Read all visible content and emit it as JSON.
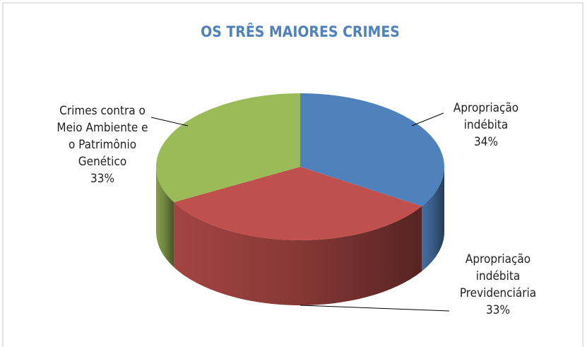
{
  "chart_data": {
    "type": "pie3d",
    "title": "OS TRÊS MAIORES CRIMES",
    "categories": [
      "Apropriação indébita",
      "Apropriação indébita Previdenciária",
      "Crimes contra o Meio Ambiente e o Patrimônio Genético"
    ],
    "values": [
      34,
      33,
      33
    ],
    "value_labels": [
      "34%",
      "33%",
      "33%"
    ],
    "colors": [
      "#4f81bd",
      "#c0504d",
      "#9bbb59"
    ]
  }
}
